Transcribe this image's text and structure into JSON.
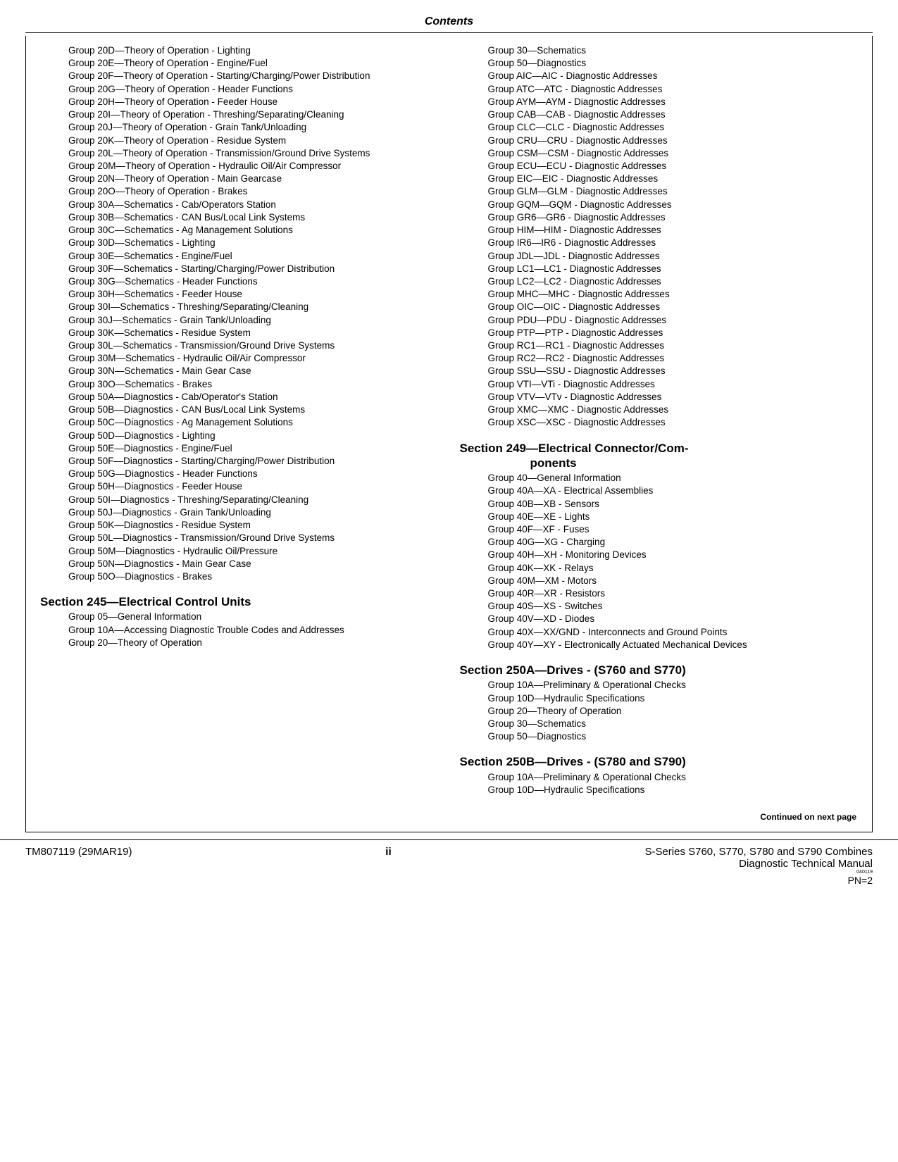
{
  "header": {
    "title": "Contents"
  },
  "left_column": {
    "initial_entries": [
      "Group 20D—Theory of Operation - Lighting",
      "Group 20E—Theory of Operation - Engine/Fuel",
      "Group 20F—Theory of Operation - Starting/Charging/Power Distribution",
      "Group 20G—Theory of Operation - Header Functions",
      "Group 20H—Theory of Operation - Feeder House",
      "Group 20I—Theory of Operation - Threshing/Separating/Cleaning",
      "Group 20J—Theory of Operation - Grain Tank/Unloading",
      "Group 20K—Theory of Operation - Residue System",
      "Group 20L—Theory of Operation - Transmission/Ground Drive Systems",
      "Group 20M—Theory of Operation - Hydraulic Oil/Air Compressor",
      "Group 20N—Theory of Operation - Main Gearcase",
      "Group 20O—Theory of Operation - Brakes",
      "Group 30A—Schematics - Cab/Operators Station",
      "Group 30B—Schematics - CAN Bus/Local Link Systems",
      "Group 30C—Schematics - Ag Management Solutions",
      "Group 30D—Schematics - Lighting",
      "Group 30E—Schematics - Engine/Fuel",
      "Group 30F—Schematics - Starting/Charging/Power Distribution",
      "Group 30G—Schematics - Header Functions",
      "Group 30H—Schematics - Feeder House",
      "Group 30I—Schematics - Threshing/Separating/Cleaning",
      "Group 30J—Schematics - Grain Tank/Unloading",
      "Group 30K—Schematics - Residue System",
      "Group 30L—Schematics - Transmission/Ground Drive Systems",
      "Group 30M—Schematics - Hydraulic Oil/Air Compressor",
      "Group 30N—Schematics - Main Gear Case",
      "Group 30O—Schematics - Brakes",
      "Group 50A—Diagnostics - Cab/Operator's Station",
      "Group 50B—Diagnostics - CAN Bus/Local Link Systems",
      "Group 50C—Diagnostics - Ag Management Solutions",
      "Group 50D—Diagnostics - Lighting",
      "Group 50E—Diagnostics - Engine/Fuel",
      "Group 50F—Diagnostics - Starting/Charging/Power Distribution",
      "Group 50G—Diagnostics - Header Functions",
      "Group 50H—Diagnostics - Feeder House",
      "Group 50I—Diagnostics - Threshing/Separating/Cleaning",
      "Group 50J—Diagnostics - Grain Tank/Unloading",
      "Group 50K—Diagnostics - Residue System",
      "Group 50L—Diagnostics - Transmission/Ground Drive Systems",
      "Group 50M—Diagnostics - Hydraulic Oil/Pressure",
      "Group 50N—Diagnostics - Main Gear Case",
      "Group 50O—Diagnostics - Brakes"
    ],
    "section245": {
      "title": "Section 245—Electrical Control Units",
      "entries": [
        "Group 05—General Information",
        "Group 10A—Accessing Diagnostic Trouble Codes and Addresses",
        "Group 20—Theory of Operation"
      ]
    }
  },
  "right_column": {
    "initial_entries": [
      "Group 30—Schematics",
      "Group 50—Diagnostics",
      "Group AIC—AIC - Diagnostic Addresses",
      "Group ATC—ATC - Diagnostic Addresses",
      "Group AYM—AYM - Diagnostic Addresses",
      "Group CAB—CAB - Diagnostic Addresses",
      "Group CLC—CLC - Diagnostic Addresses",
      "Group CRU—CRU - Diagnostic Addresses",
      "Group CSM—CSM - Diagnostic Addresses",
      "Group ECU—ECU - Diagnostic Addresses",
      "Group EIC—EIC - Diagnostic Addresses",
      "Group GLM—GLM - Diagnostic Addresses",
      "Group GQM—GQM - Diagnostic Addresses",
      "Group GR6—GR6 - Diagnostic Addresses",
      "Group HIM—HIM - Diagnostic Addresses",
      "Group IR6—IR6 - Diagnostic Addresses",
      "Group JDL—JDL - Diagnostic Addresses",
      "Group LC1—LC1 - Diagnostic Addresses",
      "Group LC2—LC2 - Diagnostic Addresses",
      "Group MHC—MHC - Diagnostic Addresses",
      "Group OIC—OIC - Diagnostic Addresses",
      "Group PDU—PDU - Diagnostic Addresses",
      "Group PTP—PTP - Diagnostic Addresses",
      "Group RC1—RC1 - Diagnostic Addresses",
      "Group RC2—RC2 - Diagnostic Addresses",
      "Group SSU—SSU - Diagnostic Addresses",
      "Group VTI—VTi - Diagnostic Addresses",
      "Group VTV—VTv - Diagnostic Addresses",
      "Group XMC—XMC - Diagnostic Addresses",
      "Group XSC—XSC - Diagnostic Addresses"
    ],
    "section249": {
      "title_line1": "Section 249—Electrical Connector/Com-",
      "title_line2": "ponents",
      "entries": [
        "Group 40—General Information",
        "Group 40A—XA - Electrical Assemblies",
        "Group 40B—XB - Sensors",
        "Group 40E—XE - Lights",
        "Group 40F—XF - Fuses",
        "Group 40G—XG - Charging",
        "Group 40H—XH - Monitoring Devices",
        "Group 40K—XK - Relays",
        "Group 40M—XM - Motors",
        "Group 40R—XR - Resistors",
        "Group 40S—XS - Switches",
        "Group 40V—XD - Diodes",
        "Group 40X—XX/GND - Interconnects and Ground Points",
        "Group 40Y—XY - Electronically Actuated Mechanical Devices"
      ]
    },
    "section250A": {
      "title": "Section 250A—Drives - (S760 and S770)",
      "entries": [
        "Group 10A—Preliminary & Operational Checks",
        "Group 10D—Hydraulic Specifications",
        "Group 20—Theory of Operation",
        "Group 30—Schematics",
        "Group 50—Diagnostics"
      ]
    },
    "section250B": {
      "title": "Section 250B—Drives - (S780 and S790)",
      "entries": [
        "Group 10A—Preliminary & Operational Checks",
        "Group 10D—Hydraulic Specifications"
      ]
    }
  },
  "continued_label": "Continued on next page",
  "footer": {
    "left": "TM807119 (29MAR19)",
    "center": "ii",
    "right_line1": "S-Series S760, S770, S780 and S790 Combines",
    "right_line2": "Diagnostic Technical Manual",
    "tiny": "040119",
    "pn": "PN=2"
  }
}
